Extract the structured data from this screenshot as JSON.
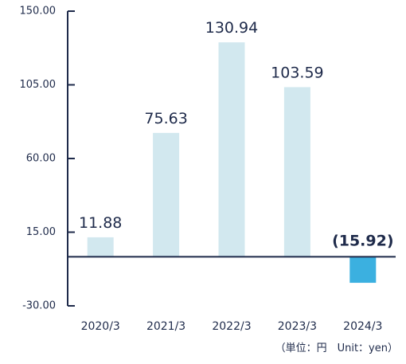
{
  "chart_data": {
    "type": "bar",
    "categories": [
      "2020/3",
      "2021/3",
      "2022/3",
      "2023/3",
      "2024/3"
    ],
    "values": [
      11.88,
      75.63,
      130.94,
      103.59,
      -15.92
    ],
    "value_labels": [
      "11.88",
      "75.63",
      "130.94",
      "103.59",
      "(15.92)"
    ],
    "y_ticks": [
      "150.00",
      "105.00",
      "60.00",
      "15.00",
      "-30.00"
    ],
    "ylim": [
      -30,
      150
    ],
    "unit_note": "（単位：円　Unit：yen）",
    "grid": false,
    "colors": {
      "positive": "#d2e8ef",
      "negative": "#3bb0e0",
      "axis": "#1e2a4a"
    }
  }
}
